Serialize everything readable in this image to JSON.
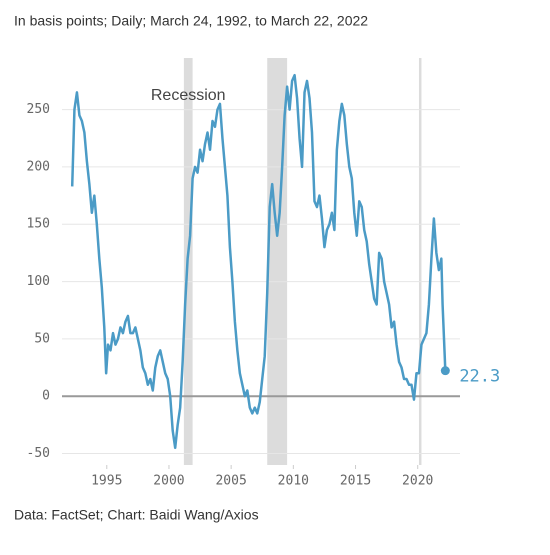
{
  "chart_data": {
    "type": "line",
    "subtitle": "In basis points; Daily; March 24, 1992, to March 22, 2022",
    "source": "Data: FactSet; Chart: Baidi Wang/Axios",
    "annotation": "Recession",
    "recessions": [
      [
        2001.2,
        2001.9
      ],
      [
        2007.9,
        2009.5
      ],
      [
        2020.1,
        2020.3
      ]
    ],
    "x": [
      1992.22,
      1992.4,
      1992.6,
      1992.8,
      1993.0,
      1993.2,
      1993.4,
      1993.6,
      1993.8,
      1994.0,
      1994.2,
      1994.4,
      1994.6,
      1994.8,
      1994.95,
      1995.1,
      1995.3,
      1995.5,
      1995.7,
      1995.9,
      1996.1,
      1996.3,
      1996.5,
      1996.7,
      1996.9,
      1997.1,
      1997.3,
      1997.5,
      1997.7,
      1997.9,
      1998.1,
      1998.3,
      1998.5,
      1998.7,
      1998.9,
      1999.1,
      1999.3,
      1999.5,
      1999.7,
      1999.9,
      2000.1,
      2000.3,
      2000.5,
      2000.7,
      2000.9,
      2001.1,
      2001.3,
      2001.5,
      2001.7,
      2001.9,
      2002.1,
      2002.3,
      2002.5,
      2002.7,
      2002.9,
      2003.1,
      2003.3,
      2003.5,
      2003.7,
      2003.9,
      2004.1,
      2004.3,
      2004.5,
      2004.7,
      2004.9,
      2005.1,
      2005.3,
      2005.5,
      2005.7,
      2005.9,
      2006.1,
      2006.3,
      2006.5,
      2006.7,
      2006.9,
      2007.1,
      2007.3,
      2007.5,
      2007.7,
      2007.9,
      2008.1,
      2008.3,
      2008.5,
      2008.7,
      2008.9,
      2009.1,
      2009.3,
      2009.5,
      2009.7,
      2009.9,
      2010.1,
      2010.3,
      2010.5,
      2010.7,
      2010.9,
      2011.1,
      2011.3,
      2011.5,
      2011.7,
      2011.9,
      2012.1,
      2012.3,
      2012.5,
      2012.7,
      2012.9,
      2013.1,
      2013.3,
      2013.5,
      2013.7,
      2013.9,
      2014.1,
      2014.3,
      2014.5,
      2014.7,
      2014.9,
      2015.1,
      2015.3,
      2015.5,
      2015.7,
      2015.9,
      2016.1,
      2016.3,
      2016.5,
      2016.7,
      2016.9,
      2017.1,
      2017.3,
      2017.5,
      2017.7,
      2017.9,
      2018.1,
      2018.3,
      2018.5,
      2018.7,
      2018.9,
      2019.1,
      2019.3,
      2019.5,
      2019.7,
      2019.9,
      2020.1,
      2020.3,
      2020.5,
      2020.7,
      2020.9,
      2021.1,
      2021.3,
      2021.5,
      2021.7,
      2021.9,
      2022.0,
      2022.22
    ],
    "series": [
      {
        "color": "#4b9bc6",
        "values": [
          183,
          250,
          265,
          245,
          240,
          230,
          205,
          185,
          160,
          175,
          150,
          120,
          95,
          60,
          20,
          45,
          40,
          55,
          45,
          50,
          60,
          55,
          65,
          70,
          55,
          55,
          60,
          50,
          40,
          25,
          20,
          10,
          15,
          5,
          25,
          35,
          40,
          30,
          20,
          15,
          0,
          -30,
          -45,
          -25,
          -10,
          30,
          80,
          120,
          140,
          190,
          200,
          195,
          215,
          205,
          220,
          230,
          215,
          240,
          235,
          250,
          255,
          225,
          200,
          175,
          130,
          100,
          65,
          40,
          20,
          10,
          0,
          5,
          -10,
          -15,
          -10,
          -15,
          -5,
          15,
          35,
          90,
          165,
          185,
          160,
          140,
          160,
          200,
          245,
          270,
          250,
          275,
          280,
          260,
          225,
          200,
          265,
          275,
          260,
          230,
          170,
          165,
          175,
          155,
          130,
          145,
          150,
          160,
          145,
          215,
          240,
          255,
          245,
          220,
          200,
          190,
          160,
          140,
          170,
          165,
          145,
          135,
          115,
          100,
          85,
          80,
          125,
          120,
          100,
          90,
          80,
          60,
          65,
          45,
          30,
          25,
          15,
          15,
          10,
          10,
          -3,
          20,
          20,
          45,
          50,
          55,
          80,
          120,
          155,
          125,
          110,
          120,
          80,
          22.3
        ]
      }
    ],
    "xlim": [
      1991.4,
      2023.4
    ],
    "ylim": [
      -60,
      295
    ],
    "xticks": [
      1995,
      2000,
      2005,
      2010,
      2015,
      2020
    ],
    "yticks": [
      -50,
      0,
      50,
      100,
      150,
      200,
      250
    ],
    "grid": true
  }
}
